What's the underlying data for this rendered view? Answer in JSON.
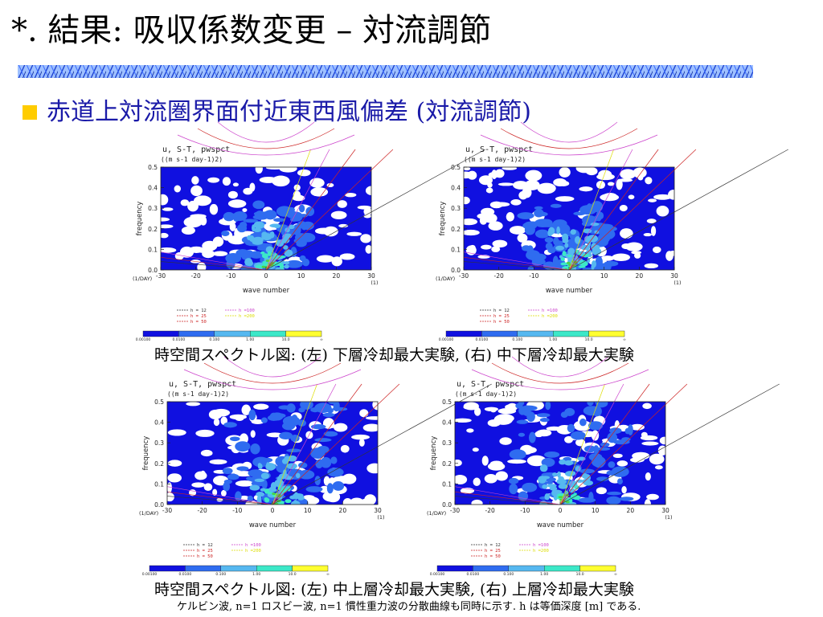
{
  "slide": {
    "title": "*. 結果: 吸収係数変更 – 対流調節",
    "bullet": "赤道上対流圏界面付近東西風偏差 (対流調節)",
    "caption_top": "時空間スペクトル図: (左) 下層冷却最大実験, (右) 中下層冷却最大実験",
    "caption_bottom": "時空間スペクトル図: (左) 中上層冷却最大実験, (右) 上層冷却最大実験",
    "footnote": "ケルビン波, n=1 ロスビー波, n=1 慣性重力波の分散曲線も同時に示す. h は等価深度 [m] である."
  },
  "colors": {
    "bullet_square": "#ffcc00",
    "bullet_text": "#1a1aa8",
    "levels": [
      "#1010e0",
      "#2f6cf0",
      "#56b8f0",
      "#3ce8c8",
      "#48d448",
      "#ffff30"
    ]
  },
  "chart_data": [
    {
      "type": "heatmap",
      "panel": "top-left",
      "title": "u, S-T, pwspct",
      "subtitle": "((m s-1 day-1)2)",
      "xlabel": "wave number",
      "ylabel": "frequency",
      "x_unit": "(1)",
      "y_unit": "(1/DAY)",
      "xlim": [
        -30,
        30
      ],
      "ylim": [
        0.0,
        0.5
      ],
      "x_ticks": [
        "-30",
        "-20",
        "-10",
        "0",
        "10",
        "20",
        "30"
      ],
      "y_ticks": [
        "0.0",
        "0.1",
        "0.2",
        "0.3",
        "0.4",
        "0.5"
      ],
      "legend": [
        "h = 12",
        "h = 25",
        "h = 50",
        "h =100",
        "h =200"
      ],
      "legend_colors": [
        "#333333",
        "#cc2222",
        "#cc2222",
        "#cc44cc",
        "#dddd00"
      ],
      "colorbar_ticks": [
        "0.00100",
        "0.0100",
        "0.100",
        "1.00",
        "10.0",
        "∞"
      ]
    },
    {
      "type": "heatmap",
      "panel": "top-right",
      "title": "u, S-T, pwspct",
      "subtitle": "((m s-1 day-1)2)",
      "xlabel": "wave number",
      "ylabel": "frequency",
      "x_unit": "(1)",
      "y_unit": "(1/DAY)",
      "xlim": [
        -30,
        30
      ],
      "ylim": [
        0.0,
        0.5
      ],
      "x_ticks": [
        "-30",
        "-20",
        "-10",
        "0",
        "10",
        "20",
        "30"
      ],
      "y_ticks": [
        "0.0",
        "0.1",
        "0.2",
        "0.3",
        "0.4",
        "0.5"
      ],
      "legend": [
        "h = 12",
        "h = 25",
        "h = 50",
        "h =100",
        "h =200"
      ],
      "legend_colors": [
        "#333333",
        "#cc2222",
        "#cc2222",
        "#cc44cc",
        "#dddd00"
      ],
      "colorbar_ticks": [
        "0.00100",
        "0.0100",
        "0.100",
        "1.00",
        "10.0",
        "∞"
      ]
    },
    {
      "type": "heatmap",
      "panel": "bottom-left",
      "title": "u, S-T, pwspct",
      "subtitle": "((m s-1 day-1)2)",
      "xlabel": "wave number",
      "ylabel": "frequency",
      "x_unit": "(1)",
      "y_unit": "(1/DAY)",
      "xlim": [
        -30,
        30
      ],
      "ylim": [
        0.0,
        0.5
      ],
      "x_ticks": [
        "-30",
        "-20",
        "-10",
        "0",
        "10",
        "20",
        "30"
      ],
      "y_ticks": [
        "0.0",
        "0.1",
        "0.2",
        "0.3",
        "0.4",
        "0.5"
      ],
      "legend": [
        "h = 12",
        "h = 25",
        "h = 50",
        "h =100",
        "h =200"
      ],
      "legend_colors": [
        "#333333",
        "#cc2222",
        "#cc2222",
        "#cc44cc",
        "#dddd00"
      ],
      "colorbar_ticks": [
        "0.00100",
        "0.0100",
        "0.100",
        "1.00",
        "10.0",
        "∞"
      ]
    },
    {
      "type": "heatmap",
      "panel": "bottom-right",
      "title": "u, S-T, pwspct",
      "subtitle": "((m s-1 day-1)2)",
      "xlabel": "wave number",
      "ylabel": "frequency",
      "x_unit": "(1)",
      "y_unit": "(1/DAY)",
      "xlim": [
        -30,
        30
      ],
      "ylim": [
        0.0,
        0.5
      ],
      "x_ticks": [
        "-30",
        "-20",
        "-10",
        "0",
        "10",
        "20",
        "30"
      ],
      "y_ticks": [
        "0.0",
        "0.1",
        "0.2",
        "0.3",
        "0.4",
        "0.5"
      ],
      "legend": [
        "h = 12",
        "h = 25",
        "h = 50",
        "h =100",
        "h =200"
      ],
      "legend_colors": [
        "#333333",
        "#cc2222",
        "#cc2222",
        "#cc44cc",
        "#dddd00"
      ],
      "colorbar_ticks": [
        "0.00100",
        "0.0100",
        "0.100",
        "1.00",
        "10.0",
        "∞"
      ]
    }
  ]
}
